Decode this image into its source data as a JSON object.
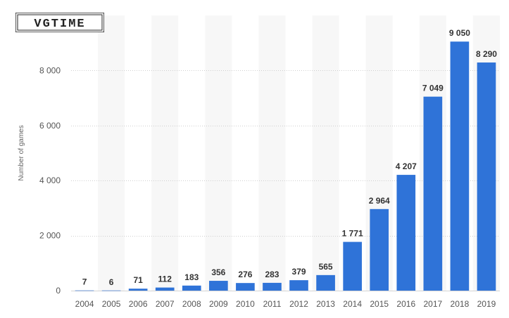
{
  "watermark": "VGTIME",
  "chart_data": {
    "type": "bar",
    "title": "",
    "xlabel": "",
    "ylabel": "Number of games",
    "ylim": [
      0,
      10000
    ],
    "yticks": [
      0,
      2000,
      4000,
      6000,
      8000
    ],
    "ytick_labels": [
      "0",
      "2 000",
      "4 000",
      "6 000",
      "8 000"
    ],
    "categories": [
      "2004",
      "2005",
      "2006",
      "2007",
      "2008",
      "2009",
      "2010",
      "2011",
      "2012",
      "2013",
      "2014",
      "2015",
      "2016",
      "2017",
      "2018",
      "2019"
    ],
    "values": [
      7,
      6,
      71,
      112,
      183,
      356,
      276,
      283,
      379,
      565,
      1771,
      2964,
      4207,
      7049,
      9050,
      8290
    ],
    "data_labels": [
      "7",
      "6",
      "71",
      "112",
      "183",
      "356",
      "276",
      "283",
      "379",
      "565",
      "1 771",
      "2 964",
      "4 207",
      "7 049",
      "9 050",
      "8 290"
    ],
    "bar_color": "#2f73d8",
    "grid": true,
    "alternating_column_bands": true
  }
}
